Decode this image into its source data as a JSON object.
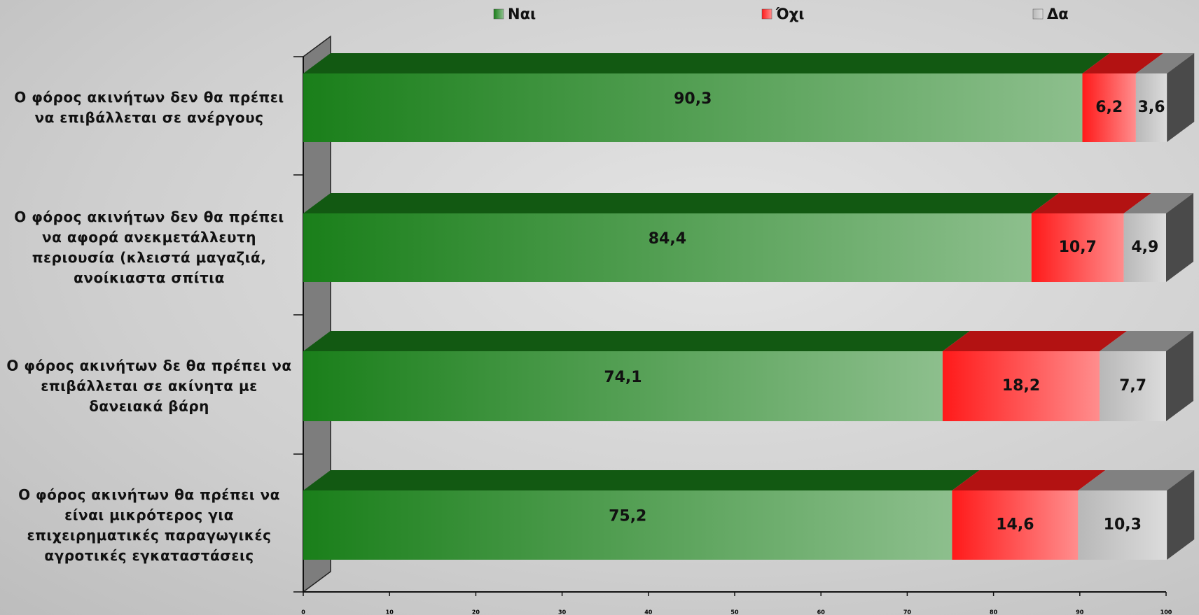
{
  "chart_data": {
    "type": "bar",
    "stacked": true,
    "orientation": "horizontal",
    "categories": [
      "Ο φόρος ακινήτων δεν θα πρέπει να επιβάλλεται σε ανέργους",
      "Ο φόρος ακινήτων δεν θα πρέπει να αφορά ανεκμετάλλευτη περιουσία (κλειστά μαγαζιά, ανοίκιαστα σπίτια",
      "Ο φόρος ακινήτων δε θα πρέπει να επιβάλλεται σε ακίνητα με δανειακά βάρη",
      "Ο φόρος ακινήτων θα πρέπει να είναι μικρότερος για επιχειρηματικές παραγωγικές αγροτικές εγκαταστάσεις"
    ],
    "series": [
      {
        "name": "Ναι",
        "color": "#1a7f1a",
        "values": [
          90.3,
          84.4,
          74.1,
          75.2
        ],
        "value_labels": [
          "90,3",
          "84,4",
          "74,1",
          "75,2"
        ]
      },
      {
        "name": "Όχι",
        "color": "#ff1a1a",
        "values": [
          6.2,
          10.7,
          18.2,
          14.6
        ],
        "value_labels": [
          "6,2",
          "10,7",
          "18,2",
          "14,6"
        ]
      },
      {
        "name": "Δα",
        "color": "#b8b8b8",
        "values": [
          3.6,
          4.9,
          7.7,
          10.3
        ],
        "value_labels": [
          "3,6",
          "4,9",
          "7,7",
          "10,3"
        ]
      }
    ],
    "xlim": [
      0,
      100
    ],
    "xticks": [
      0,
      10,
      20,
      30,
      40,
      50,
      60,
      70,
      80,
      90,
      100
    ],
    "legend": "top"
  }
}
